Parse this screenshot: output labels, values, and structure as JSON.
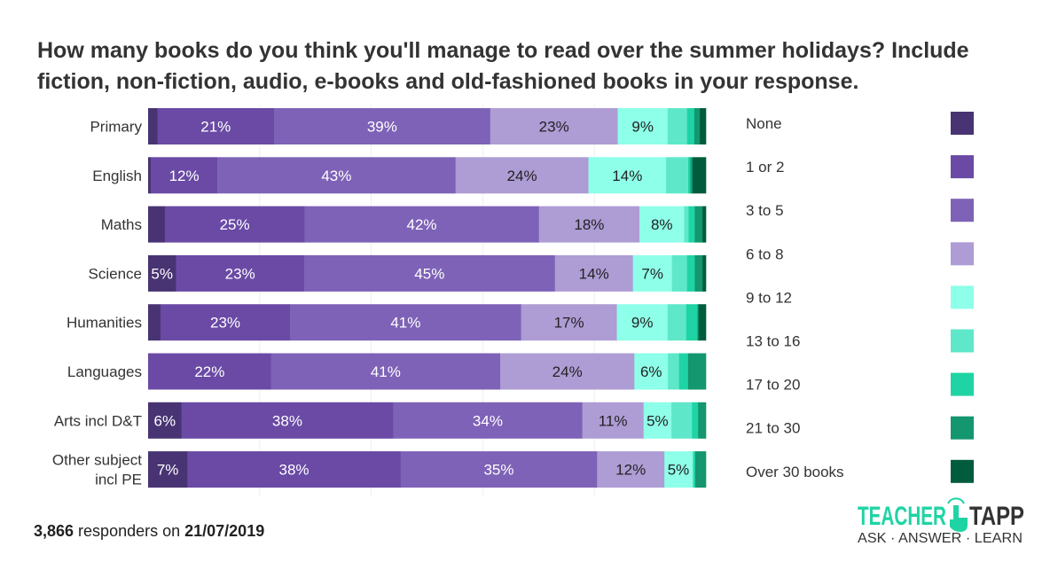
{
  "chart_data": {
    "type": "bar",
    "orientation": "horizontal",
    "stacked": true,
    "percent": true,
    "title": "How many books do you think you'll manage to read over the summer holidays? Include fiction, non-fiction, audio, e-books and old-fashioned books in your response.",
    "categories": [
      "Primary",
      "English",
      "Maths",
      "Science",
      "Humanities",
      "Languages",
      "Arts incl D&T",
      "Other subject incl PE"
    ],
    "category_lines": [
      [
        "Primary"
      ],
      [
        "English"
      ],
      [
        "Maths"
      ],
      [
        "Science"
      ],
      [
        "Humanities"
      ],
      [
        "Languages"
      ],
      [
        "Arts incl D&T"
      ],
      [
        "Other subject",
        "incl PE"
      ]
    ],
    "xlim": [
      0,
      100
    ],
    "legend_position": "right",
    "series": [
      {
        "name": "None",
        "color": "#483473",
        "label_color": "#ffffff",
        "values": [
          1.7,
          0.5,
          3,
          5,
          2.2,
          0,
          6,
          7
        ]
      },
      {
        "name": "1 or 2",
        "color": "#6a4aa5",
        "label_color": "#ffffff",
        "values": [
          21,
          12,
          25,
          23,
          23,
          22,
          38,
          38
        ]
      },
      {
        "name": "3 to 5",
        "color": "#7e62b7",
        "label_color": "#ffffff",
        "values": [
          39,
          43,
          42,
          45,
          41,
          41,
          34,
          35
        ]
      },
      {
        "name": "6 to 8",
        "color": "#ae9cd5",
        "label_color": "#222222",
        "values": [
          23,
          24,
          18,
          14,
          17,
          24,
          11,
          12
        ]
      },
      {
        "name": "9 to 12",
        "color": "#8effe8",
        "label_color": "#222222",
        "values": [
          9,
          14,
          8,
          7,
          9,
          6,
          5,
          5
        ]
      },
      {
        "name": "13 to 16",
        "color": "#5ee8c9",
        "label_color": "#222222",
        "values": [
          3.5,
          4,
          0.8,
          2.7,
          3.3,
          2,
          3.7,
          0.2
        ]
      },
      {
        "name": "17 to 20",
        "color": "#1fd4a4",
        "label_color": "#222222",
        "values": [
          1.3,
          0.4,
          1.1,
          1.4,
          2,
          1.6,
          1.1,
          0.3
        ]
      },
      {
        "name": "21 to 30",
        "color": "#14966e",
        "label_color": "#222222",
        "values": [
          1,
          0.4,
          1.4,
          1.4,
          0.2,
          3.2,
          1.4,
          1.9
        ]
      },
      {
        "name": "Over 30 books",
        "color": "#005c3d",
        "label_color": "#ffffff",
        "values": [
          1.1,
          2.4,
          0.6,
          0.6,
          1.3,
          0,
          0,
          0
        ]
      }
    ]
  },
  "footer": {
    "count": "3,866",
    "mid": " responders on ",
    "date": "21/07/2019"
  },
  "logo": {
    "word1": "TEACHER",
    "word2": "TAPP",
    "tagline": "ASK · ANSWER · LEARN"
  }
}
